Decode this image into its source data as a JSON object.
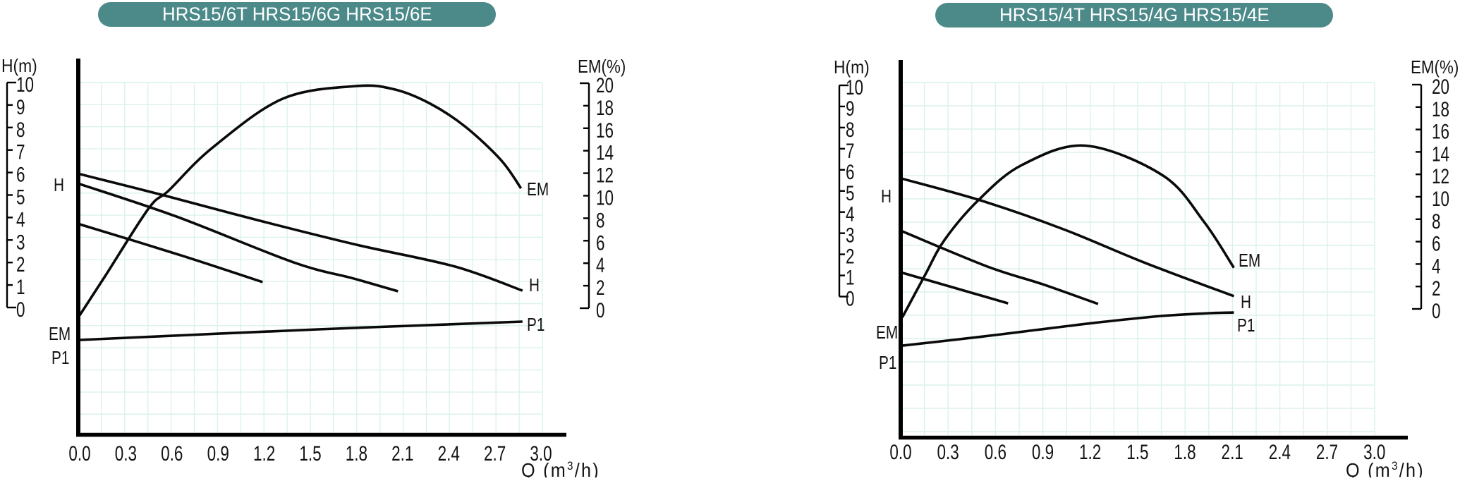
{
  "colors": {
    "badge_fill": "#4C8A8A",
    "badge_text": "#FFFFFF",
    "grid_line": "#DBF2EA",
    "curve": "#0A0A0A",
    "axis": "#000000",
    "text": "#141414"
  },
  "charts": [
    {
      "title": "HRS15/6T HRS15/6G HRS15/6E",
      "left_axis_title": "H(m)",
      "right_axis_title": "EM(%)",
      "q_axis_title": {
        "pre": "Q (m",
        "sup": "3",
        "post": "/h)"
      },
      "h_tick_labels": [
        "10",
        "9",
        "8",
        "7",
        "6",
        "5",
        "4",
        "3",
        "2",
        "1",
        "0"
      ],
      "em_tick_labels": [
        "20",
        "18",
        "16",
        "14",
        "12",
        "10",
        "8",
        "6",
        "4",
        "2",
        "0"
      ],
      "q_tick_labels": [
        "0.0",
        "0.3",
        "0.6",
        "0.9",
        "1.2",
        "1.5",
        "1.8",
        "2.1",
        "2.4",
        "2.7",
        "3.0"
      ],
      "curve_labels": {
        "h_start": "H",
        "em_start": "EM",
        "p1_start": "P1",
        "em_end": "EM",
        "h_end": "H",
        "p1_end": "P1"
      }
    },
    {
      "title": "HRS15/4T HRS15/4G HRS15/4E",
      "left_axis_title": "H(m)",
      "right_axis_title": "EM(%)",
      "q_axis_title": {
        "pre": "Q (m",
        "sup": "3",
        "post": "/h)"
      },
      "h_tick_labels": [
        "10",
        "9",
        "8",
        "7",
        "6",
        "5",
        "4",
        "3",
        "2",
        "1",
        "0"
      ],
      "em_tick_labels": [
        "20",
        "18",
        "16",
        "14",
        "12",
        "10",
        "8",
        "6",
        "4",
        "2",
        "0"
      ],
      "q_tick_labels": [
        "0.0",
        "0.3",
        "0.6",
        "0.9",
        "1.2",
        "1.5",
        "1.8",
        "2.1",
        "2.4",
        "2.7",
        "3.0"
      ],
      "curve_labels": {
        "h_start": "H",
        "em_start": "EM",
        "p1_start": "P1",
        "em_end": "EM",
        "h_end": "H",
        "p1_end": "P1"
      }
    }
  ],
  "chart_data": [
    {
      "type": "line",
      "title": "HRS15/6T HRS15/6G HRS15/6E",
      "x_axis": {
        "label": "Q (m3/h)",
        "min": 0,
        "max": 3.0,
        "tick_step": 0.3
      },
      "y_left_axis": {
        "label": "H(m)",
        "min": 0,
        "max": 10,
        "tick_step": 1
      },
      "y_right_axis": {
        "label": "EM(%)",
        "min": 0,
        "max": 20,
        "tick_step": 2
      },
      "grid": true,
      "series": [
        {
          "name": "H (top curve)",
          "axis": "H",
          "points": [
            [
              0,
              5.93
            ],
            [
              0.55,
              4.98
            ],
            [
              1.17,
              3.86
            ],
            [
              1.8,
              2.79
            ],
            [
              2.44,
              1.82
            ],
            [
              2.88,
              0.75
            ]
          ]
        },
        {
          "name": "H (middle curve)",
          "axis": "H",
          "points": [
            [
              0,
              5.49
            ],
            [
              0.63,
              4.04
            ],
            [
              1.39,
              2.01
            ],
            [
              1.78,
              1.29
            ],
            [
              2.07,
              0.72
            ]
          ]
        },
        {
          "name": "H (bottom curve)",
          "axis": "H",
          "points": [
            [
              0,
              3.7
            ],
            [
              0.63,
              2.38
            ],
            [
              1.19,
              1.13
            ]
          ]
        },
        {
          "name": "EM",
          "axis": "EM",
          "points": [
            [
              0,
              -0.63
            ],
            [
              0.17,
              2.95
            ],
            [
              0.45,
              8.9
            ],
            [
              0.58,
              10.47
            ],
            [
              0.86,
              14.23
            ],
            [
              1.32,
              18.62
            ],
            [
              1.8,
              19.75
            ],
            [
              2.05,
              19.44
            ],
            [
              2.28,
              18.18
            ],
            [
              2.51,
              16.11
            ],
            [
              2.74,
              13.17
            ],
            [
              2.87,
              10.66
            ]
          ]
        },
        {
          "name": "P1",
          "axis": "EM",
          "points": [
            [
              0,
              -2.82
            ],
            [
              1.55,
              -1.88
            ],
            [
              2.88,
              -1.19
            ]
          ]
        }
      ]
    },
    {
      "type": "line",
      "title": "HRS15/4T HRS15/4G HRS15/4E",
      "x_axis": {
        "label": "Q (m3/h)",
        "min": 0,
        "max": 3.0,
        "tick_step": 0.3
      },
      "y_left_axis": {
        "label": "H(m)",
        "min": 0,
        "max": 10,
        "tick_step": 1
      },
      "y_right_axis": {
        "label": "EM(%)",
        "min": 0,
        "max": 20,
        "tick_step": 2
      },
      "grid": true,
      "series": [
        {
          "name": "H (top curve)",
          "axis": "H",
          "points": [
            [
              0,
              5.6
            ],
            [
              0.52,
              4.52
            ],
            [
              1.03,
              3.19
            ],
            [
              1.55,
              1.59
            ],
            [
              2.11,
              0.02
            ]
          ]
        },
        {
          "name": "H (middle curve)",
          "axis": "H",
          "points": [
            [
              0,
              3.12
            ],
            [
              0.55,
              1.42
            ],
            [
              0.9,
              0.58
            ],
            [
              1.25,
              -0.35
            ]
          ]
        },
        {
          "name": "H (bottom curve)",
          "axis": "H",
          "points": [
            [
              0,
              1.15
            ],
            [
              0.37,
              0.35
            ],
            [
              0.68,
              -0.32
            ]
          ]
        },
        {
          "name": "EM",
          "axis": "EM",
          "points": [
            [
              0.01,
              -0.76
            ],
            [
              0.15,
              2.91
            ],
            [
              0.28,
              6.2
            ],
            [
              0.5,
              9.81
            ],
            [
              0.77,
              12.85
            ],
            [
              1.17,
              14.56
            ],
            [
              1.66,
              11.9
            ],
            [
              1.92,
              7.78
            ],
            [
              2.11,
              3.67
            ]
          ]
        },
        {
          "name": "P1",
          "axis": "EM",
          "points": [
            [
              0,
              -3.29
            ],
            [
              0.48,
              -2.53
            ],
            [
              0.77,
              -2.03
            ],
            [
              1.21,
              -1.27
            ],
            [
              1.65,
              -0.63
            ],
            [
              1.96,
              -0.38
            ],
            [
              2.11,
              -0.32
            ]
          ]
        }
      ]
    }
  ]
}
